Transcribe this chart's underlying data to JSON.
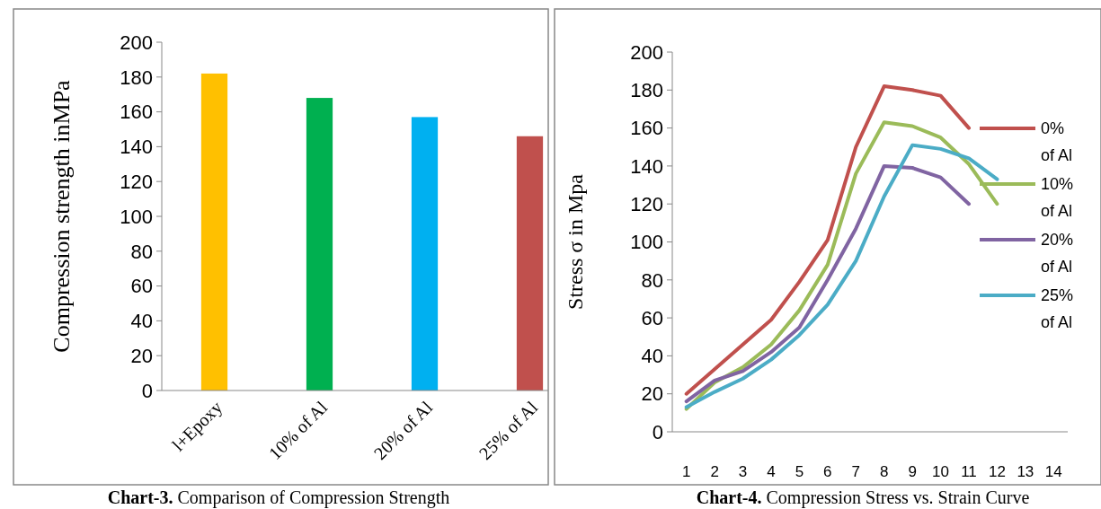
{
  "chart_data": [
    {
      "type": "bar",
      "title": "Chart-3. Comparison of Compression Strength",
      "ylabel": "Compression  strength inMPa",
      "categories": [
        "l+Epoxy",
        "10% of Al",
        "20% of Al",
        "25% of Al"
      ],
      "values": [
        182,
        168,
        157,
        146
      ],
      "colors": [
        "#ffc000",
        "#00b050",
        "#00b0f0",
        "#c0504d"
      ],
      "ylim": [
        0,
        200
      ],
      "yticks": [
        0,
        20,
        40,
        60,
        80,
        100,
        120,
        140,
        160,
        180,
        200
      ],
      "grid": false
    },
    {
      "type": "line",
      "title": "Chart-4. Compression Stress vs. Strain Curve",
      "ylabel": "Stress σ in Mpa",
      "xlim": [
        0.5,
        14.5
      ],
      "xticks": [
        1,
        2,
        3,
        4,
        5,
        6,
        7,
        8,
        9,
        10,
        11,
        12,
        13,
        14
      ],
      "ylim": [
        0,
        200
      ],
      "yticks": [
        0,
        20,
        40,
        60,
        80,
        100,
        120,
        140,
        160,
        180,
        200
      ],
      "grid": false,
      "legend": "right",
      "marker": "none",
      "series": [
        {
          "name": "0% of Al",
          "color": "#c0504d",
          "x": [
            1,
            2,
            3,
            4,
            5,
            6,
            7,
            8,
            9,
            10,
            11
          ],
          "values": [
            20,
            33,
            46,
            59,
            79,
            101,
            150,
            182,
            180,
            177,
            160
          ]
        },
        {
          "name": "10% of Al",
          "color": "#9bbb59",
          "x": [
            1,
            2,
            3,
            4,
            5,
            6,
            7,
            8,
            9,
            10,
            11,
            12
          ],
          "values": [
            12,
            26,
            34,
            46,
            64,
            88,
            136,
            163,
            161,
            155,
            141,
            120
          ]
        },
        {
          "name": "20% of Al",
          "color": "#8064a2",
          "x": [
            1,
            2,
            3,
            4,
            5,
            6,
            7,
            8,
            9,
            10,
            11
          ],
          "values": [
            16,
            27,
            32,
            42,
            55,
            80,
            107,
            140,
            139,
            134,
            120
          ]
        },
        {
          "name": "25% of Al",
          "color": "#4bacc6",
          "x": [
            1,
            2,
            3,
            4,
            5,
            6,
            7,
            8,
            9,
            10,
            11,
            12
          ],
          "values": [
            13,
            21,
            28,
            38,
            51,
            67,
            90,
            124,
            151,
            149,
            144,
            133
          ]
        }
      ]
    }
  ]
}
